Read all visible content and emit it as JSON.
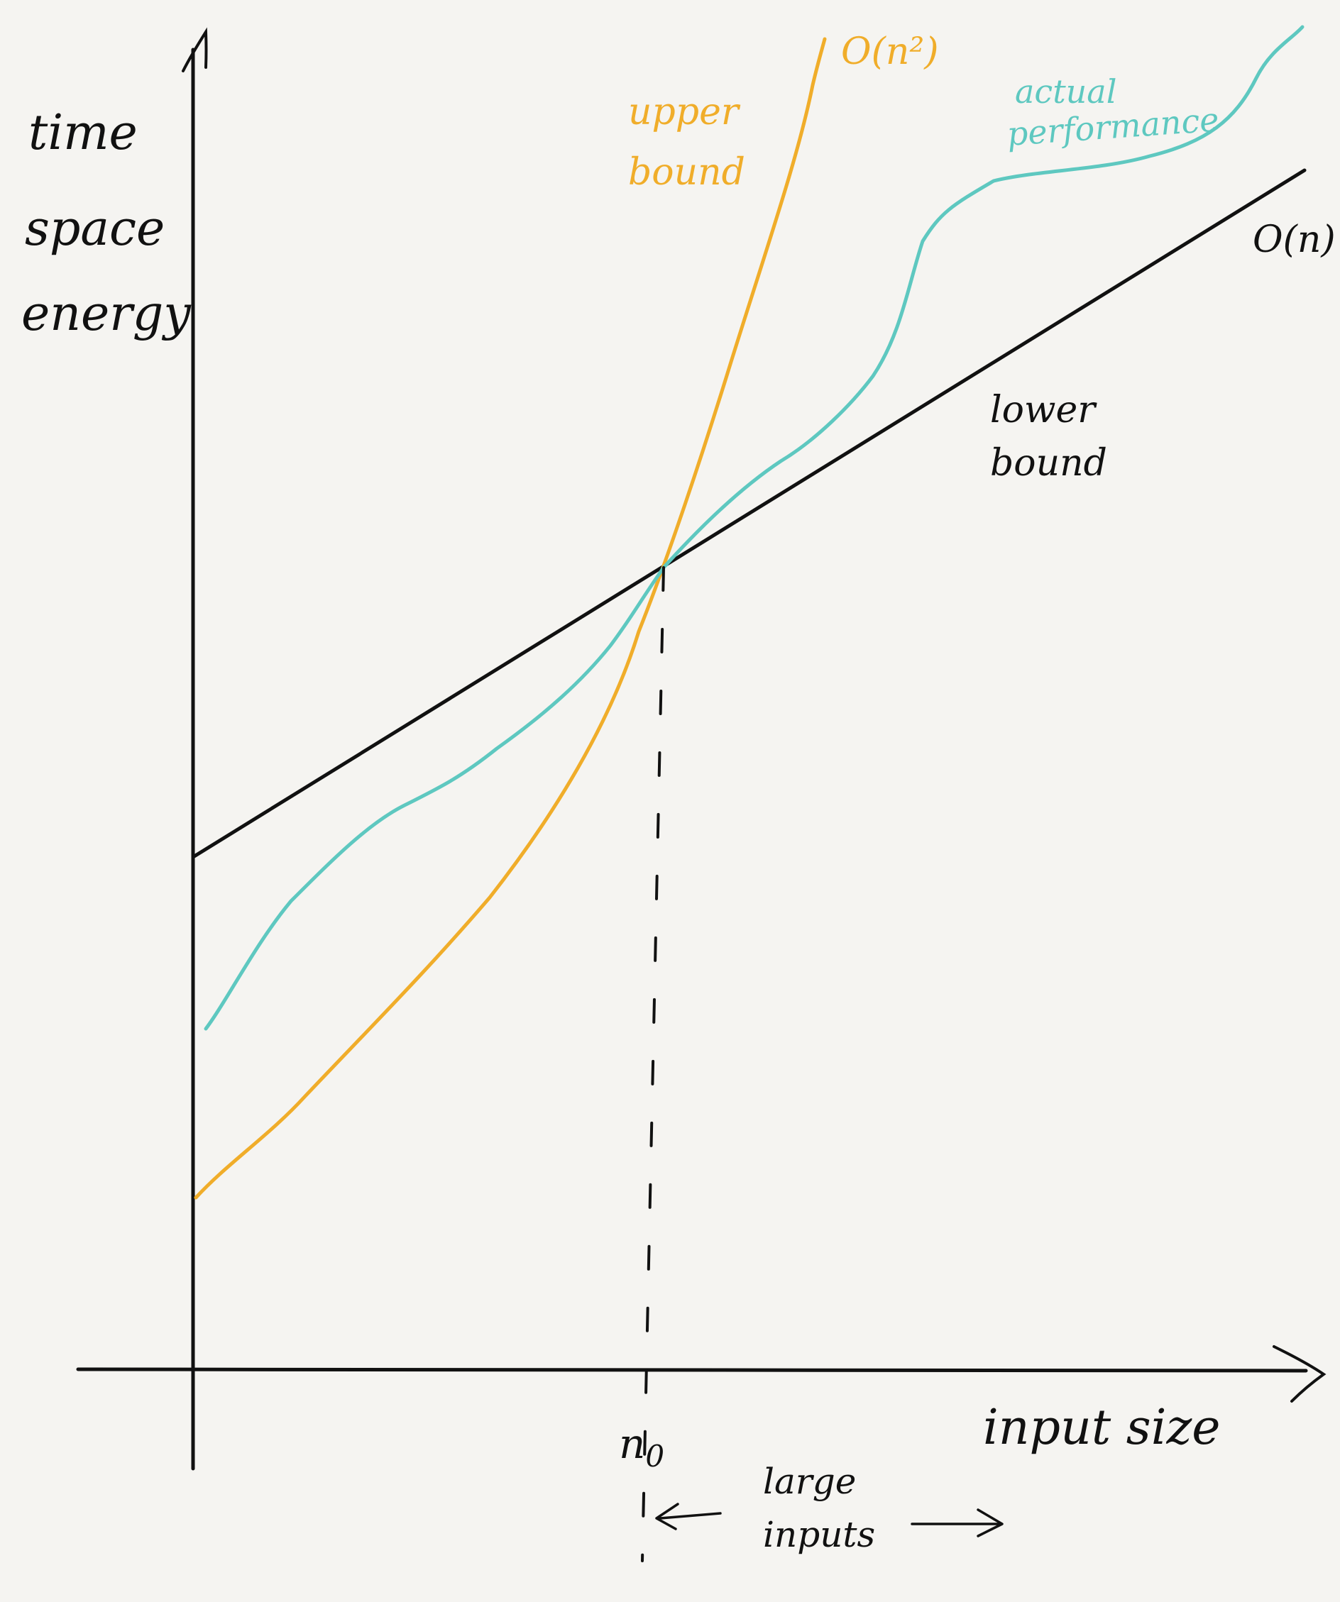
{
  "y_axis": {
    "labels": [
      "time",
      "space",
      "energy"
    ]
  },
  "x_axis": {
    "label": "input size",
    "threshold_label": "n",
    "threshold_subscript": "0",
    "region_label_line1": "large",
    "region_label_line2": "inputs"
  },
  "curves": {
    "upper": {
      "complexity": "O(n²)",
      "label_line1": "upper",
      "label_line2": "bound",
      "color": "#f0ad2a"
    },
    "actual": {
      "label_line1": "actual",
      "label_line2": "performance",
      "color": "#5ec8c0"
    },
    "lower": {
      "complexity": "O(n)",
      "label_line1": "lower",
      "label_line2": "bound",
      "color": "#111111"
    }
  }
}
